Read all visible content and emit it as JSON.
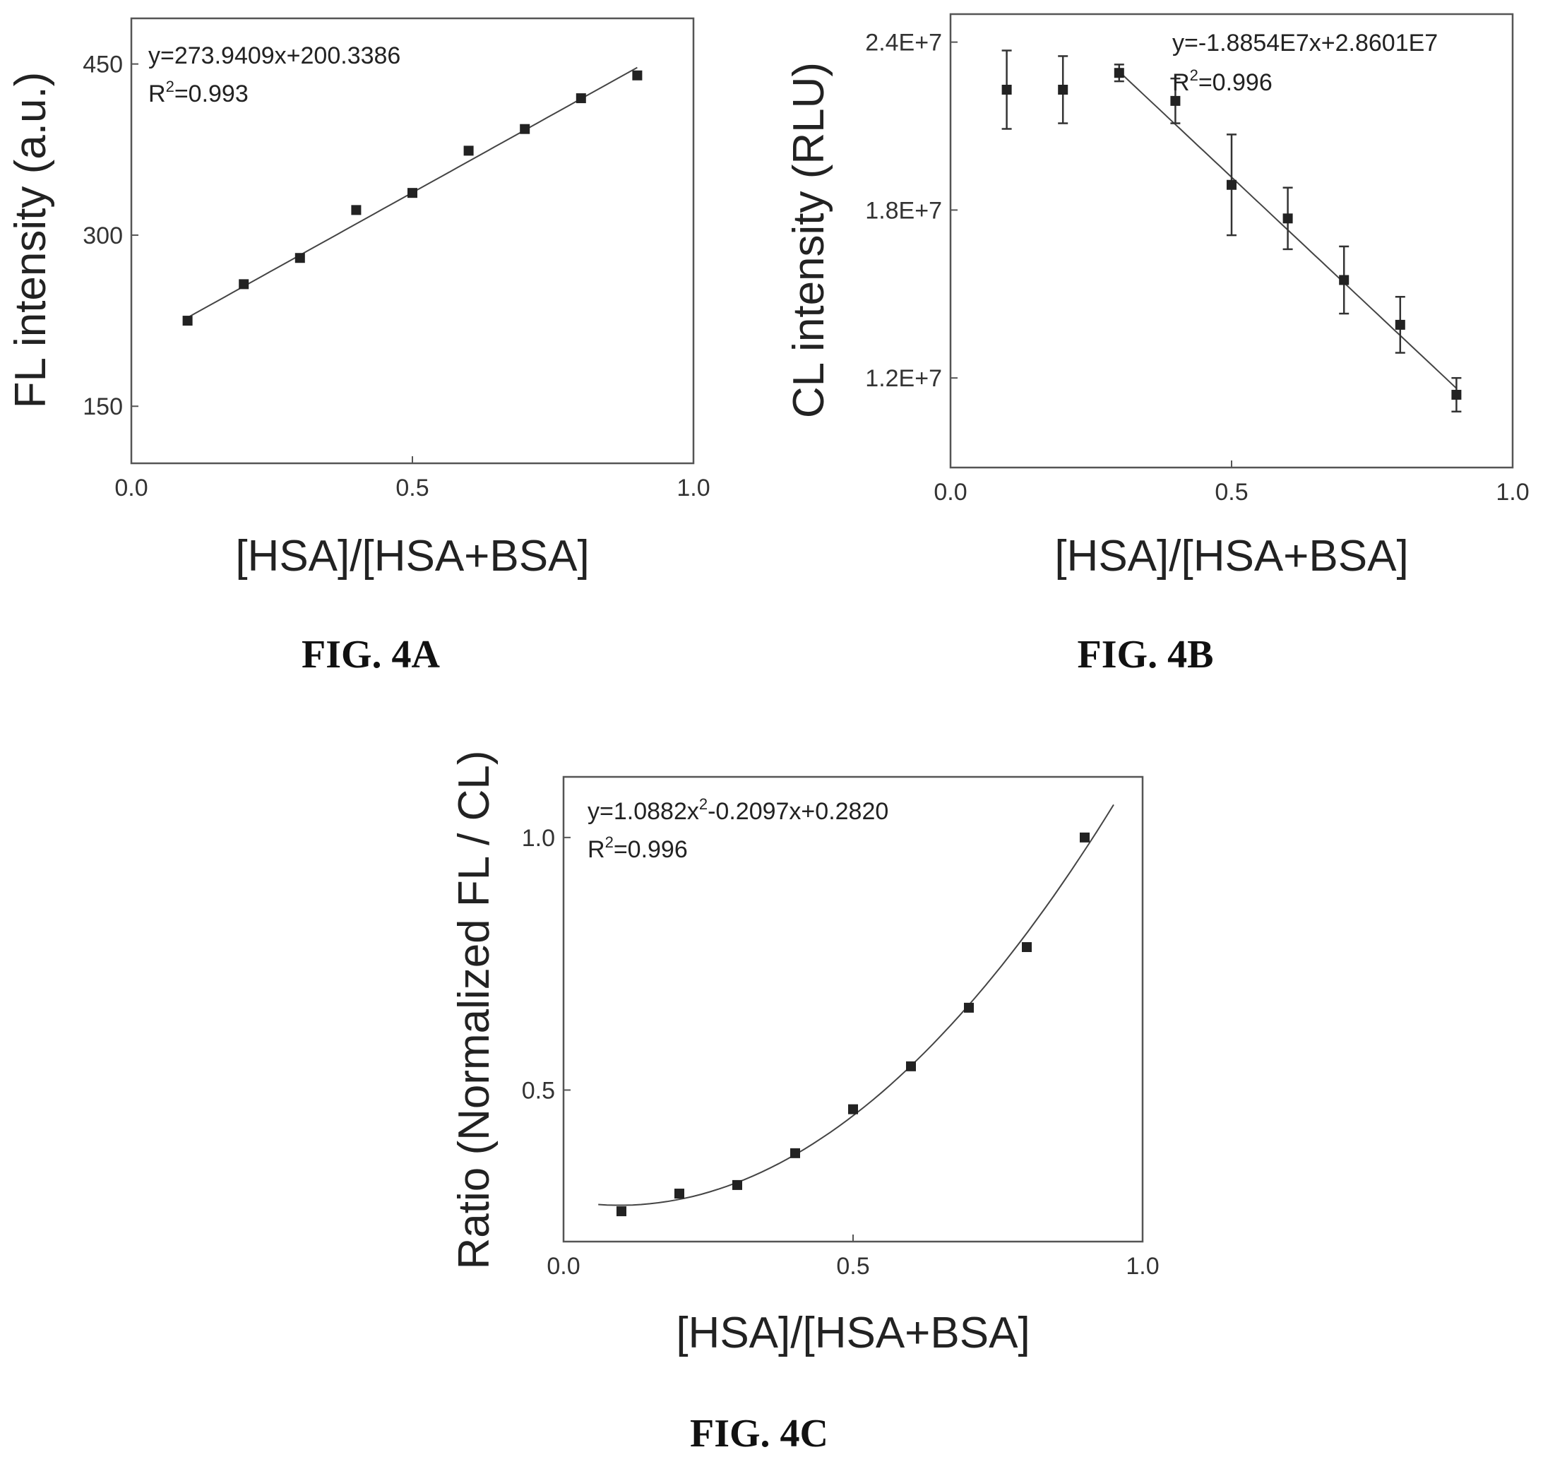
{
  "chart_data": [
    {
      "type": "scatter",
      "caption": "FIG. 4A",
      "xlabel": "[HSA]/[HSA+BSA]",
      "ylabel": "FL intensity (a.u.)",
      "xlim": [
        0,
        1
      ],
      "ylim": [
        100,
        490
      ],
      "x_ticks": [
        0,
        0.5,
        1
      ],
      "x_tick_labels": [
        "0.0",
        "0.5",
        "1.0"
      ],
      "y_ticks": [
        150,
        300,
        450
      ],
      "y_tick_labels": [
        "150",
        "300",
        "450"
      ],
      "equation": "y=273.9409x+200.3386",
      "r2_label": "R",
      "r2_sup": "2",
      "r2_value": "=0.993",
      "fit": {
        "kind": "linear",
        "coeffs": [
          273.9409,
          200.3386
        ],
        "xrange": [
          0.1,
          0.9
        ]
      },
      "series": [
        {
          "x": [
            0.1,
            0.2,
            0.3,
            0.4,
            0.5,
            0.6,
            0.7,
            0.8,
            0.9
          ],
          "y": [
            225,
            257,
            280,
            322,
            337,
            374,
            393,
            420,
            440
          ]
        }
      ],
      "grid": false
    },
    {
      "type": "scatter",
      "caption": "FIG. 4B",
      "xlabel": "[HSA]/[HSA+BSA]",
      "ylabel": "CL intensity (RLU)",
      "xlim": [
        0,
        1
      ],
      "ylim": [
        8800000,
        25000000
      ],
      "x_ticks": [
        0,
        0.5,
        1
      ],
      "x_tick_labels": [
        "0.0",
        "0.5",
        "1.0"
      ],
      "y_ticks": [
        12000000,
        18000000,
        24000000
      ],
      "y_tick_labels": [
        "1.2E+7",
        "1.8E+7",
        "2.4E+7"
      ],
      "equation": "y=-1.8854E7x+2.8601E7",
      "r2_label": "R",
      "r2_sup": "2",
      "r2_value": "=0.996",
      "fit": {
        "kind": "linear",
        "coeffs": [
          -18854000,
          28601000
        ],
        "xrange": [
          0.3,
          0.9
        ]
      },
      "series": [
        {
          "x": [
            0.1,
            0.2,
            0.3,
            0.4,
            0.5,
            0.6,
            0.7,
            0.8,
            0.9
          ],
          "y": [
            22300000,
            22300000,
            22900000,
            21900000,
            18900000,
            17700000,
            15500000,
            13900000,
            11400000
          ],
          "error": [
            1400000,
            1200000,
            300000,
            800000,
            1800000,
            1100000,
            1200000,
            1000000,
            600000
          ]
        }
      ],
      "grid": false
    },
    {
      "type": "scatter",
      "caption": "FIG. 4C",
      "xlabel": "[HSA]/[HSA+BSA]",
      "ylabel": "Ratio (Normalized FL / CL)",
      "xlim": [
        0,
        1
      ],
      "ylim": [
        0.2,
        1.12
      ],
      "x_ticks": [
        0,
        0.5,
        1
      ],
      "x_tick_labels": [
        "0.0",
        "0.5",
        "1.0"
      ],
      "y_ticks": [
        0.5,
        1.0
      ],
      "y_tick_labels": [
        "0.5",
        "1.0"
      ],
      "equation_parts": [
        "y=1.0882x",
        "2",
        "-0.2097x+0.2820"
      ],
      "r2_label": "R",
      "r2_sup": "2",
      "r2_value": "=0.996",
      "fit": {
        "kind": "quadratic",
        "coeffs": [
          1.0882,
          -0.2097,
          0.282
        ],
        "xrange": [
          0.06,
          0.95
        ]
      },
      "series": [
        {
          "x": [
            0.1,
            0.2,
            0.3,
            0.4,
            0.5,
            0.6,
            0.7,
            0.8,
            0.9
          ],
          "y": [
            0.26,
            0.295,
            0.312,
            0.375,
            0.462,
            0.547,
            0.663,
            0.783,
            1.0
          ]
        }
      ],
      "grid": false
    }
  ]
}
